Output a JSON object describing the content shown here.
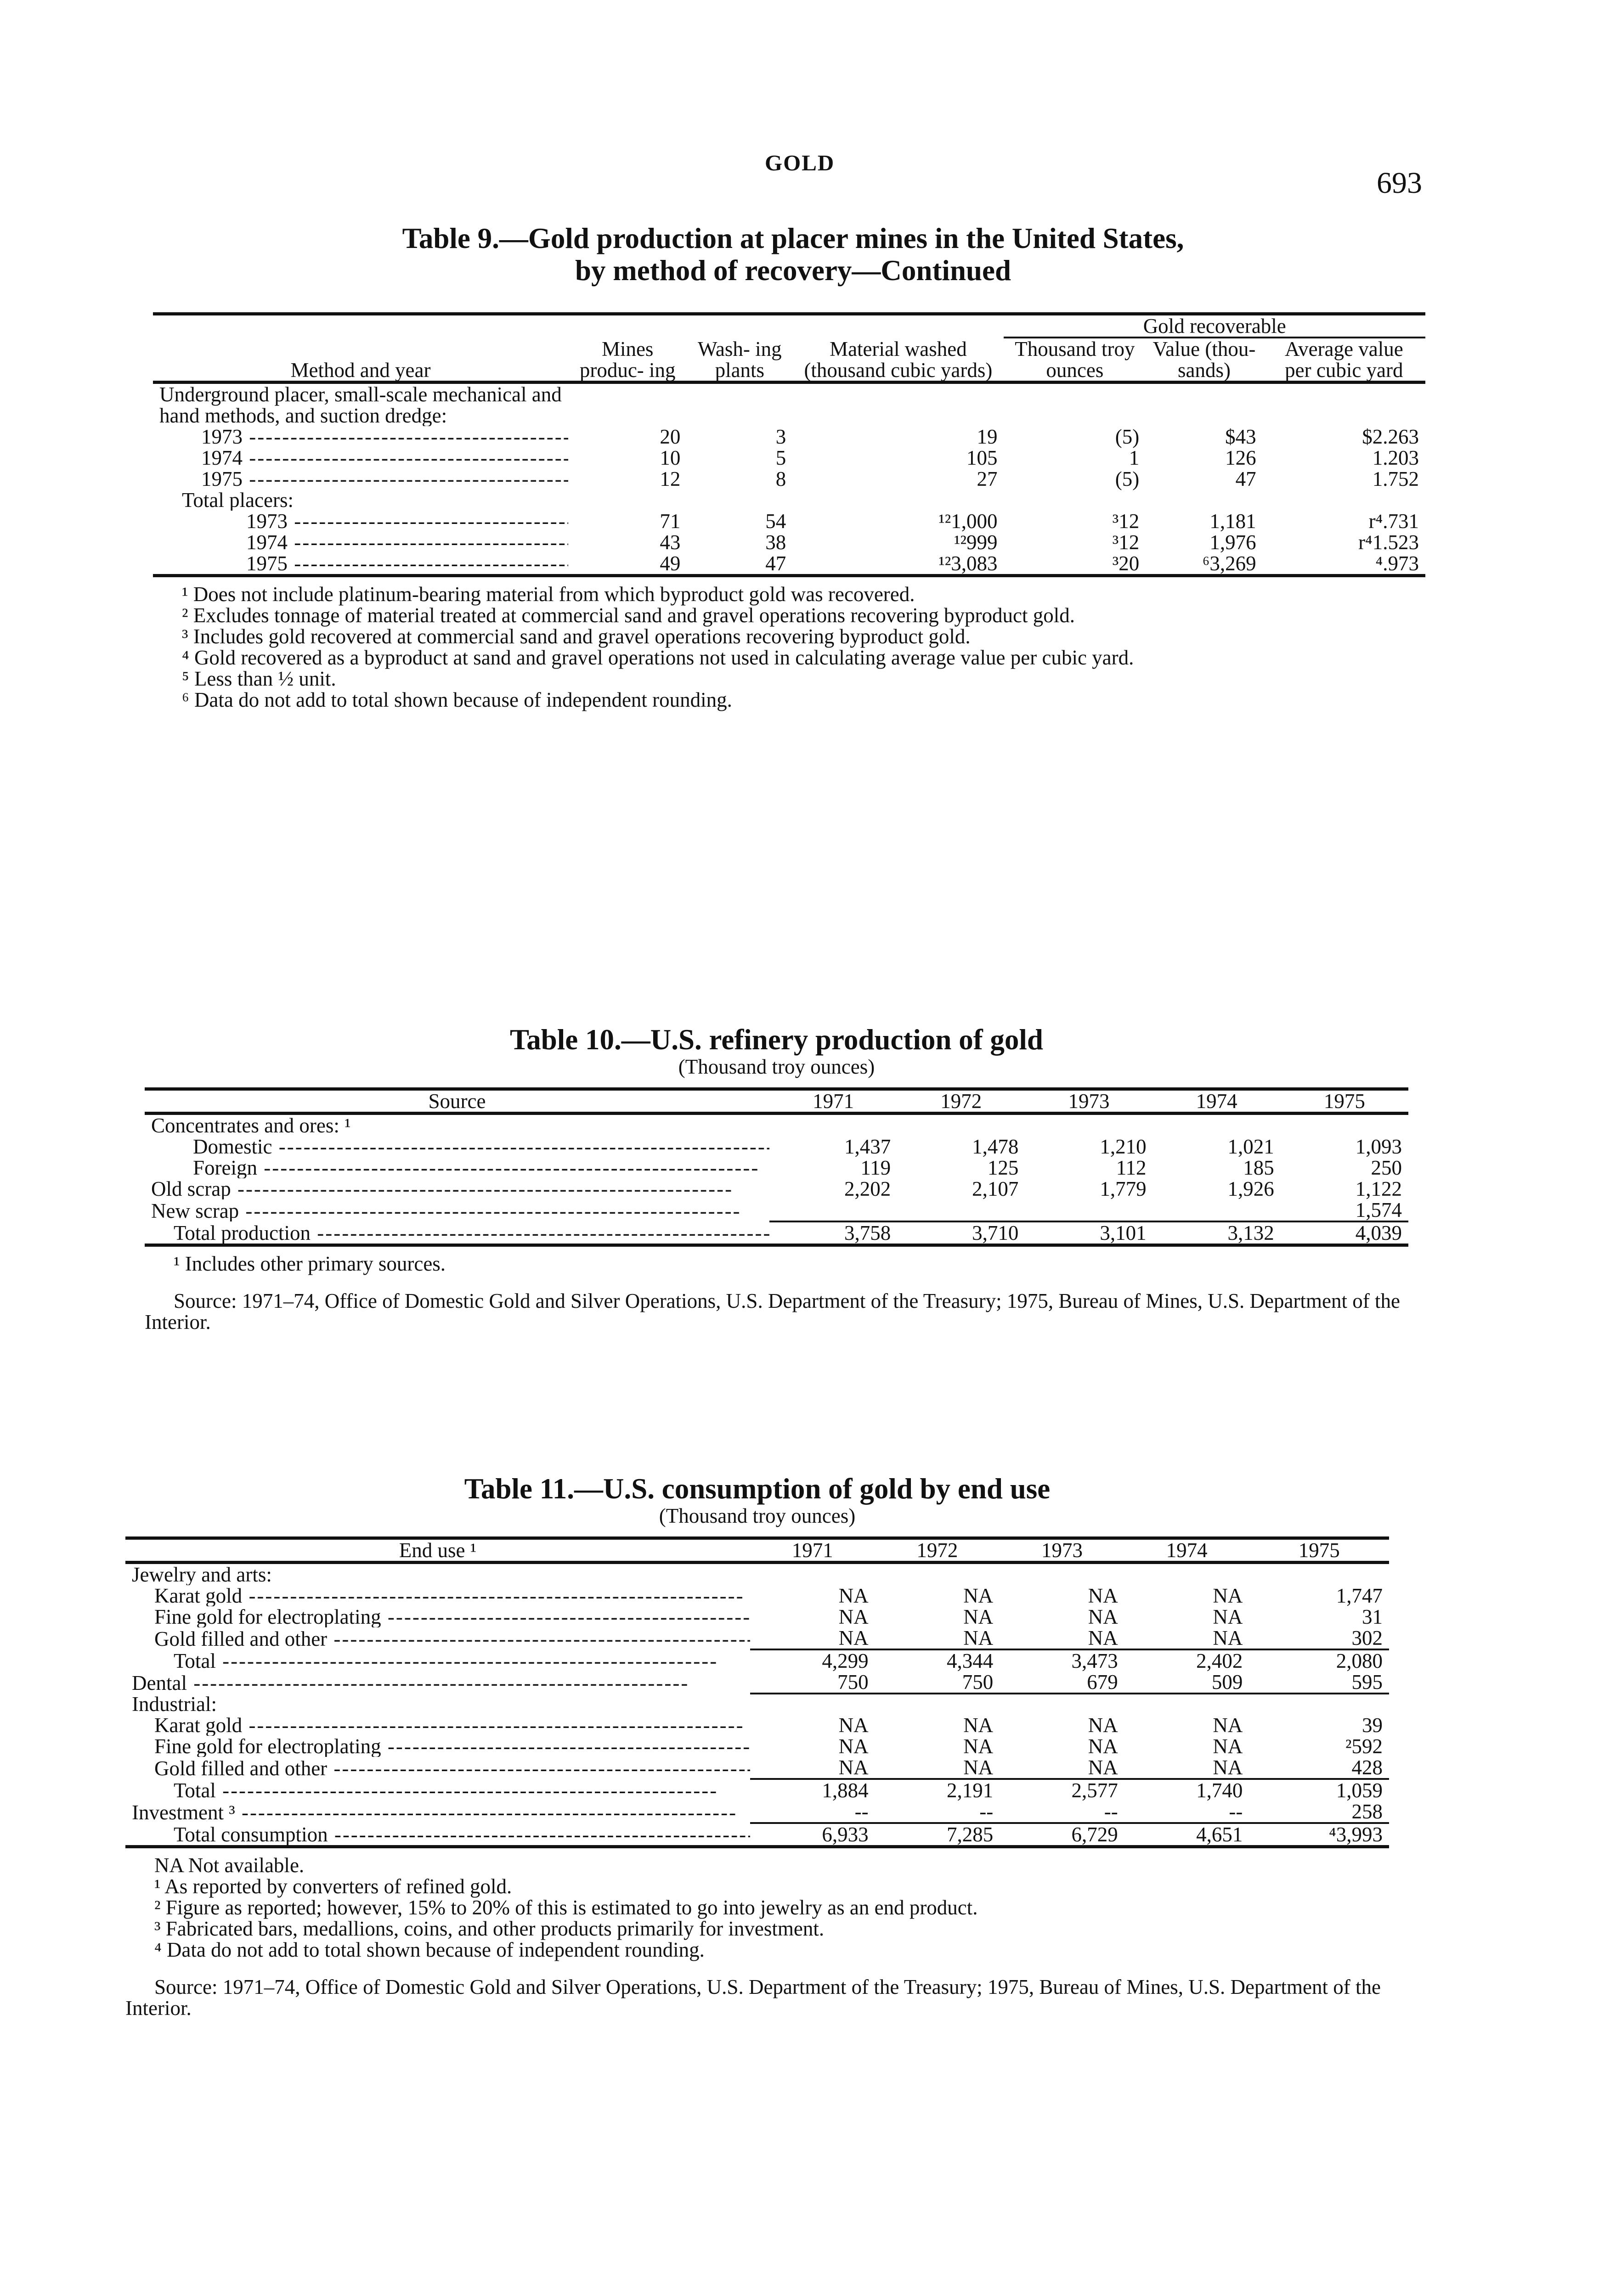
{
  "header": {
    "running_head": "GOLD",
    "page_number": "693"
  },
  "table9": {
    "title": "Table 9.—Gold production at placer mines in the United States,",
    "title2": "by method of recovery—Continued",
    "columns": [
      "Method and year",
      "Mines produc- ing",
      "Wash- ing plants",
      "Material washed (thousand cubic yards)",
      "Thousand troy ounces",
      "Value (thou- sands)",
      "Average value per cubic yard"
    ],
    "group_header": "Gold recoverable",
    "rows": [
      {
        "label": "Underground placer, small-scale mechanical and hand methods, and suction dredge:",
        "indent": 0,
        "cells": [
          "",
          "",
          "",
          "",
          "",
          ""
        ]
      },
      {
        "label": "1973",
        "indent": 2,
        "cells": [
          "20",
          "3",
          "19",
          "(5)",
          "$43",
          "$2.263"
        ]
      },
      {
        "label": "1974",
        "indent": 2,
        "cells": [
          "10",
          "5",
          "105",
          "1",
          "126",
          "1.203"
        ]
      },
      {
        "label": "1975",
        "indent": 2,
        "cells": [
          "12",
          "8",
          "27",
          "(5)",
          "47",
          "1.752"
        ]
      },
      {
        "label": "Total placers:",
        "indent": 1,
        "cells": [
          "",
          "",
          "",
          "",
          "",
          ""
        ]
      },
      {
        "label": "1973",
        "indent": 3,
        "cells": [
          "71",
          "54",
          "¹²1,000",
          "³12",
          "1,181",
          "r⁴.731"
        ]
      },
      {
        "label": "1974",
        "indent": 3,
        "cells": [
          "43",
          "38",
          "¹²999",
          "³12",
          "1,976",
          "r⁴1.523"
        ]
      },
      {
        "label": "1975",
        "indent": 3,
        "cells": [
          "49",
          "47",
          "¹²3,083",
          "³20",
          "⁶3,269",
          "⁴.973"
        ]
      }
    ],
    "footnotes": [
      "¹ Does not include platinum-bearing material from which byproduct gold was recovered.",
      "² Excludes tonnage of material treated at commercial sand and gravel operations recovering byproduct gold.",
      "³ Includes gold recovered at commercial sand and gravel operations recovering byproduct gold.",
      "⁴ Gold recovered as a byproduct at sand and gravel operations not used in calculating average value per cubic yard.",
      "⁵ Less than ½ unit.",
      "⁶ Data do not add to total shown because of independent rounding."
    ]
  },
  "table10": {
    "title": "Table 10.—U.S. refinery production of gold",
    "subtitle": "(Thousand troy ounces)",
    "columns": [
      "Source",
      "1971",
      "1972",
      "1973",
      "1974",
      "1975"
    ],
    "rows": [
      {
        "label": "Concentrates and ores: ¹",
        "indent": 0,
        "cells": [
          "",
          "",
          "",
          "",
          ""
        ]
      },
      {
        "label": "Domestic",
        "indent": 2,
        "cells": [
          "1,437",
          "1,478",
          "1,210",
          "1,021",
          "1,093"
        ]
      },
      {
        "label": "Foreign",
        "indent": 2,
        "cells": [
          "119",
          "125",
          "112",
          "185",
          "250"
        ]
      },
      {
        "label": "Old scrap",
        "indent": 0,
        "cells": [
          "2,202",
          "2,107",
          "1,779",
          "1,926",
          "1,122"
        ]
      },
      {
        "label": "New scrap",
        "indent": 0,
        "cells": [
          "",
          "",
          "",
          "",
          "1,574"
        ]
      },
      {
        "label": "Total production",
        "indent": 1,
        "total": true,
        "cells": [
          "3,758",
          "3,710",
          "3,101",
          "3,132",
          "4,039"
        ]
      }
    ],
    "footnotes": [
      "¹ Includes other primary sources."
    ],
    "source": "Source: 1971–74, Office of Domestic Gold and Silver Operations, U.S. Department of the Treasury; 1975, Bureau of Mines, U.S. Department of the Interior."
  },
  "table11": {
    "title": "Table 11.—U.S. consumption of gold by end use",
    "subtitle": "(Thousand troy ounces)",
    "columns": [
      "End use ¹",
      "1971",
      "1972",
      "1973",
      "1974",
      "1975"
    ],
    "rows": [
      {
        "label": "Jewelry and arts:",
        "indent": 0,
        "cells": [
          "",
          "",
          "",
          "",
          ""
        ]
      },
      {
        "label": "Karat gold",
        "indent": 1,
        "cells": [
          "NA",
          "NA",
          "NA",
          "NA",
          "1,747"
        ]
      },
      {
        "label": "Fine gold for electroplating",
        "indent": 1,
        "cells": [
          "NA",
          "NA",
          "NA",
          "NA",
          "31"
        ]
      },
      {
        "label": "Gold filled and other",
        "indent": 1,
        "cells": [
          "NA",
          "NA",
          "NA",
          "NA",
          "302"
        ]
      },
      {
        "label": "Total",
        "indent": 2,
        "total": true,
        "cells": [
          "4,299",
          "4,344",
          "3,473",
          "2,402",
          "2,080"
        ]
      },
      {
        "label": "Dental",
        "indent": 0,
        "cells": [
          "750",
          "750",
          "679",
          "509",
          "595"
        ]
      },
      {
        "label": "Industrial:",
        "indent": 0,
        "total": true,
        "cells": [
          "",
          "",
          "",
          "",
          ""
        ]
      },
      {
        "label": "Karat gold",
        "indent": 1,
        "cells": [
          "NA",
          "NA",
          "NA",
          "NA",
          "39"
        ]
      },
      {
        "label": "Fine gold for electroplating",
        "indent": 1,
        "cells": [
          "NA",
          "NA",
          "NA",
          "NA",
          "²592"
        ]
      },
      {
        "label": "Gold filled and other",
        "indent": 1,
        "cells": [
          "NA",
          "NA",
          "NA",
          "NA",
          "428"
        ]
      },
      {
        "label": "Total",
        "indent": 2,
        "total": true,
        "cells": [
          "1,884",
          "2,191",
          "2,577",
          "1,740",
          "1,059"
        ]
      },
      {
        "label": "Investment ³",
        "indent": 0,
        "cells": [
          "--",
          "--",
          "--",
          "--",
          "258"
        ]
      },
      {
        "label": "Total consumption",
        "indent": 2,
        "total": true,
        "cells": [
          "6,933",
          "7,285",
          "6,729",
          "4,651",
          "⁴3,993"
        ]
      }
    ],
    "footnotes": [
      "NA Not available.",
      "¹ As reported by converters of refined gold.",
      "² Figure as reported; however, 15% to 20% of this is estimated to go into jewelry as an end product.",
      "³ Fabricated bars, medallions, coins, and other products primarily for investment.",
      "⁴ Data do not add to total shown because of independent rounding."
    ],
    "source": "Source: 1971–74, Office of Domestic Gold and Silver Operations, U.S. Department of the Treasury; 1975, Bureau of Mines, U.S. Department of the Interior."
  }
}
